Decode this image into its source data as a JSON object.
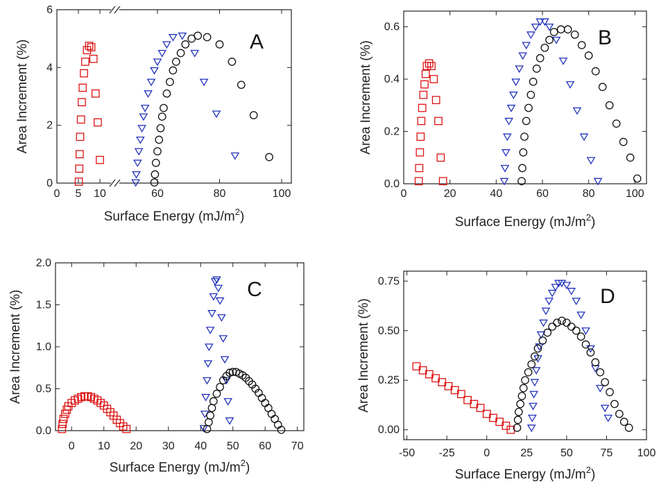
{
  "colors": {
    "red": "#dd1111",
    "blue": "#2233bb",
    "black": "#111111",
    "axis": "#222222"
  },
  "chart_data": [
    {
      "panel": "A",
      "type": "scatter",
      "xlabel": "Surface Energy (mJ/m",
      "xlabel_sup": "2",
      "xlabel_close": ")",
      "ylabel": "Area Increment (%)",
      "axis_break": true,
      "xticks": [
        "0",
        "5",
        "10",
        "60",
        "80",
        "100"
      ],
      "yticks": [
        "0",
        "2",
        "4",
        "6"
      ],
      "ylim": [
        0,
        6
      ],
      "series": [
        {
          "marker": "square",
          "color": "red",
          "x": [
            5.1,
            5.2,
            5.3,
            5.4,
            5.6,
            5.8,
            6.0,
            6.3,
            6.6,
            7.0,
            7.5,
            8.0,
            8.5,
            9.0,
            9.5,
            10.0
          ],
          "y": [
            0.05,
            0.5,
            1.0,
            1.6,
            2.2,
            2.8,
            3.3,
            3.8,
            4.2,
            4.6,
            4.75,
            4.7,
            4.3,
            3.1,
            2.1,
            0.8
          ]
        },
        {
          "marker": "triangle",
          "color": "blue",
          "x": [
            53,
            53.2,
            53.6,
            54,
            54.5,
            55,
            55.5,
            56,
            57,
            58,
            59,
            60,
            61.5,
            63,
            65,
            68,
            72,
            75,
            79,
            85
          ],
          "y": [
            0.02,
            0.3,
            0.7,
            1.1,
            1.5,
            1.9,
            2.3,
            2.6,
            3.1,
            3.5,
            3.9,
            4.2,
            4.5,
            4.8,
            5.05,
            5.1,
            4.5,
            3.5,
            2.4,
            0.95
          ]
        },
        {
          "marker": "circle",
          "color": "black",
          "x": [
            59,
            59.2,
            59.5,
            60,
            60.5,
            61,
            61.5,
            62,
            63,
            64,
            65,
            66,
            67.5,
            69,
            71,
            73,
            76,
            80,
            84,
            87,
            91,
            96
          ],
          "y": [
            0.02,
            0.3,
            0.7,
            1.1,
            1.5,
            1.9,
            2.3,
            2.6,
            3.1,
            3.5,
            3.9,
            4.2,
            4.5,
            4.8,
            5.0,
            5.1,
            5.05,
            4.8,
            4.2,
            3.4,
            2.35,
            0.9
          ]
        }
      ]
    },
    {
      "panel": "B",
      "type": "scatter",
      "xlabel": "Surface Energy (mJ/m",
      "xlabel_sup": "2",
      "xlabel_close": ")",
      "ylabel": "Area Increment (%)",
      "xlim": [
        0,
        105
      ],
      "ylim": [
        0,
        0.66
      ],
      "xticks": [
        "0",
        "20",
        "40",
        "60",
        "80",
        "100"
      ],
      "yticks": [
        "0.0",
        "0.2",
        "0.4",
        "0.6"
      ],
      "series": [
        {
          "marker": "square",
          "color": "red",
          "x": [
            6.5,
            6.7,
            7,
            7.3,
            7.6,
            8,
            8.5,
            9,
            9.5,
            10,
            11,
            12,
            13,
            14,
            15,
            16,
            17
          ],
          "y": [
            0.01,
            0.06,
            0.12,
            0.18,
            0.24,
            0.29,
            0.34,
            0.38,
            0.42,
            0.45,
            0.46,
            0.45,
            0.4,
            0.32,
            0.24,
            0.1,
            0.01
          ]
        },
        {
          "marker": "triangle",
          "color": "blue",
          "x": [
            43.5,
            43.8,
            44.2,
            44.8,
            45.5,
            46.5,
            47.5,
            48.5,
            50,
            51.5,
            53,
            55,
            57,
            59,
            61,
            63,
            66,
            69,
            72,
            75,
            78,
            81,
            84
          ],
          "y": [
            0.01,
            0.06,
            0.12,
            0.18,
            0.24,
            0.29,
            0.34,
            0.39,
            0.44,
            0.49,
            0.53,
            0.57,
            0.6,
            0.62,
            0.62,
            0.6,
            0.55,
            0.47,
            0.38,
            0.28,
            0.18,
            0.09,
            0.01
          ]
        },
        {
          "marker": "circle",
          "color": "black",
          "x": [
            51,
            51.3,
            51.7,
            52.2,
            53,
            54,
            55,
            56,
            57.5,
            59,
            61,
            63,
            65,
            68,
            71,
            74,
            77,
            80,
            83,
            86,
            89,
            92,
            95,
            98,
            101
          ],
          "y": [
            0.01,
            0.06,
            0.12,
            0.18,
            0.24,
            0.29,
            0.34,
            0.39,
            0.44,
            0.48,
            0.52,
            0.55,
            0.58,
            0.59,
            0.59,
            0.57,
            0.53,
            0.49,
            0.43,
            0.37,
            0.3,
            0.23,
            0.16,
            0.1,
            0.02
          ]
        }
      ]
    },
    {
      "panel": "C",
      "type": "scatter",
      "xlabel": "Surface Energy (mJ/m",
      "xlabel_sup": "2",
      "xlabel_close": ")",
      "ylabel": "Area Increment (%)",
      "xlim": [
        -5,
        72
      ],
      "ylim": [
        0,
        2.0
      ],
      "xticks": [
        "0",
        "10",
        "20",
        "30",
        "40",
        "50",
        "60",
        "70"
      ],
      "yticks": [
        "0.0",
        "0.5",
        "1.0",
        "1.5",
        "2.0"
      ],
      "series": [
        {
          "marker": "square",
          "color": "red",
          "x": [
            -3,
            -2.8,
            -2.5,
            -2,
            -1.5,
            -1,
            0,
            1,
            2,
            3,
            4,
            5,
            6,
            7,
            8,
            9,
            10,
            11,
            12,
            13,
            14,
            15,
            16,
            17
          ],
          "y": [
            0.02,
            0.08,
            0.14,
            0.2,
            0.25,
            0.29,
            0.33,
            0.36,
            0.38,
            0.4,
            0.41,
            0.41,
            0.4,
            0.38,
            0.36,
            0.33,
            0.3,
            0.26,
            0.22,
            0.18,
            0.13,
            0.09,
            0.05,
            0.02
          ]
        },
        {
          "marker": "triangle",
          "color": "blue",
          "x": [
            41,
            41.3,
            41.6,
            42,
            42.3,
            42.6,
            43,
            43.5,
            44,
            44.5,
            45,
            45.5,
            46,
            46.5,
            47,
            47.5,
            48,
            48.5,
            49
          ],
          "y": [
            0.03,
            0.2,
            0.4,
            0.6,
            0.8,
            1.0,
            1.2,
            1.4,
            1.6,
            1.78,
            1.8,
            1.7,
            1.55,
            1.35,
            1.1,
            0.85,
            0.6,
            0.35,
            0.12
          ]
        },
        {
          "marker": "circle",
          "color": "black",
          "x": [
            42,
            42.5,
            43,
            43.5,
            44,
            45,
            46,
            47,
            48,
            49,
            50,
            51,
            52,
            53,
            54,
            55,
            56,
            57,
            58,
            59,
            60,
            61,
            62,
            63,
            64,
            65
          ],
          "y": [
            0.02,
            0.1,
            0.18,
            0.27,
            0.35,
            0.44,
            0.52,
            0.6,
            0.65,
            0.69,
            0.7,
            0.7,
            0.68,
            0.66,
            0.63,
            0.59,
            0.55,
            0.5,
            0.45,
            0.39,
            0.33,
            0.27,
            0.2,
            0.14,
            0.07,
            0.01
          ]
        }
      ]
    },
    {
      "panel": "D",
      "type": "scatter",
      "xlabel": "Surface Energy (mJ/m",
      "xlabel_sup": "2",
      "xlabel_close": ")",
      "ylabel": "Area Increment (%)",
      "xlim": [
        -52,
        100
      ],
      "ylim": [
        -0.05,
        0.8
      ],
      "xticks": [
        "-50",
        "-25",
        "0",
        "25",
        "50",
        "75",
        "100"
      ],
      "yticks": [
        "0.00",
        "0.25",
        "0.50",
        "0.75"
      ],
      "series": [
        {
          "marker": "square",
          "color": "red",
          "x": [
            -44,
            -40,
            -36,
            -32,
            -28,
            -24,
            -20,
            -16,
            -12,
            -8,
            -4,
            0,
            4,
            8,
            12,
            15
          ],
          "y": [
            0.32,
            0.3,
            0.28,
            0.26,
            0.24,
            0.22,
            0.2,
            0.18,
            0.15,
            0.13,
            0.11,
            0.08,
            0.06,
            0.04,
            0.02,
            0.0
          ]
        },
        {
          "marker": "triangle",
          "color": "blue",
          "x": [
            28,
            28.5,
            29,
            29.5,
            30,
            31,
            32,
            33,
            34,
            35.5,
            37,
            39,
            41,
            43,
            45,
            47,
            50,
            53,
            56,
            59,
            62,
            65,
            68,
            71,
            74,
            76
          ],
          "y": [
            0.01,
            0.06,
            0.12,
            0.18,
            0.24,
            0.3,
            0.36,
            0.42,
            0.48,
            0.54,
            0.6,
            0.65,
            0.69,
            0.72,
            0.74,
            0.74,
            0.73,
            0.7,
            0.65,
            0.58,
            0.5,
            0.41,
            0.31,
            0.21,
            0.11,
            0.06
          ]
        },
        {
          "marker": "circle",
          "color": "black",
          "x": [
            19,
            19.5,
            20,
            21,
            22,
            23,
            24,
            26,
            28,
            30,
            32,
            35,
            38,
            41,
            44,
            47,
            50,
            53,
            56,
            59,
            62,
            65,
            68,
            71,
            74,
            77,
            80,
            83,
            86,
            89
          ],
          "y": [
            0.01,
            0.05,
            0.09,
            0.13,
            0.17,
            0.21,
            0.25,
            0.29,
            0.33,
            0.37,
            0.41,
            0.45,
            0.49,
            0.52,
            0.54,
            0.55,
            0.54,
            0.52,
            0.5,
            0.47,
            0.43,
            0.39,
            0.34,
            0.29,
            0.24,
            0.19,
            0.13,
            0.08,
            0.04,
            0.01
          ]
        }
      ]
    }
  ]
}
